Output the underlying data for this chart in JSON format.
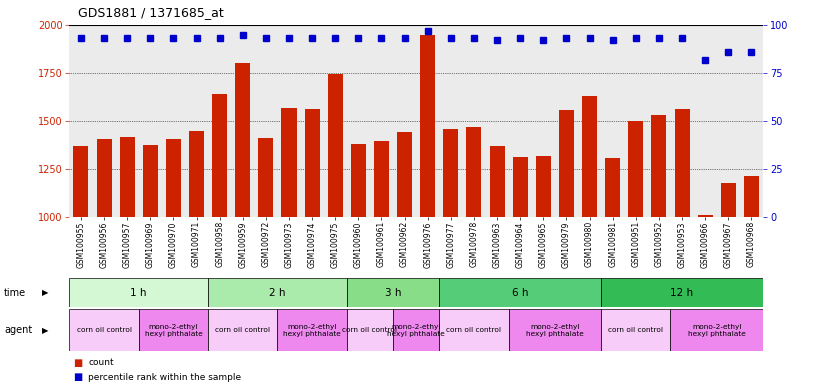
{
  "title": "GDS1881 / 1371685_at",
  "samples": [
    "GSM100955",
    "GSM100956",
    "GSM100957",
    "GSM100969",
    "GSM100970",
    "GSM100971",
    "GSM100958",
    "GSM100959",
    "GSM100972",
    "GSM100973",
    "GSM100974",
    "GSM100975",
    "GSM100960",
    "GSM100961",
    "GSM100962",
    "GSM100976",
    "GSM100977",
    "GSM100978",
    "GSM100963",
    "GSM100964",
    "GSM100965",
    "GSM100979",
    "GSM100980",
    "GSM100981",
    "GSM100951",
    "GSM100952",
    "GSM100953",
    "GSM100966",
    "GSM100967",
    "GSM100968"
  ],
  "counts": [
    1370,
    1405,
    1415,
    1375,
    1405,
    1450,
    1640,
    1800,
    1410,
    1570,
    1560,
    1745,
    1380,
    1395,
    1445,
    1950,
    1460,
    1470,
    1370,
    1310,
    1315,
    1555,
    1630,
    1305,
    1500,
    1530,
    1560,
    1010,
    1175,
    1215
  ],
  "percentiles": [
    93,
    93,
    93,
    93,
    93,
    93,
    93,
    95,
    93,
    93,
    93,
    93,
    93,
    93,
    93,
    97,
    93,
    93,
    92,
    93,
    92,
    93,
    93,
    92,
    93,
    93,
    93,
    82,
    86,
    86
  ],
  "time_groups": [
    {
      "label": "1 h",
      "start": 0,
      "end": 6,
      "color": "#d4f7d4"
    },
    {
      "label": "2 h",
      "start": 6,
      "end": 12,
      "color": "#aaeaaa"
    },
    {
      "label": "3 h",
      "start": 12,
      "end": 16,
      "color": "#88dd88"
    },
    {
      "label": "6 h",
      "start": 16,
      "end": 23,
      "color": "#55cc77"
    },
    {
      "label": "12 h",
      "start": 23,
      "end": 30,
      "color": "#33bb55"
    }
  ],
  "agent_groups": [
    {
      "label": "corn oil control",
      "start": 0,
      "end": 3,
      "color": "#f8ccf8"
    },
    {
      "label": "mono-2-ethyl\nhexyl phthalate",
      "start": 3,
      "end": 6,
      "color": "#ee88ee"
    },
    {
      "label": "corn oil control",
      "start": 6,
      "end": 9,
      "color": "#f8ccf8"
    },
    {
      "label": "mono-2-ethyl\nhexyl phthalate",
      "start": 9,
      "end": 12,
      "color": "#ee88ee"
    },
    {
      "label": "corn oil control",
      "start": 12,
      "end": 14,
      "color": "#f8ccf8"
    },
    {
      "label": "mono-2-ethyl\nhexyl phthalate",
      "start": 14,
      "end": 16,
      "color": "#ee88ee"
    },
    {
      "label": "corn oil control",
      "start": 16,
      "end": 19,
      "color": "#f8ccf8"
    },
    {
      "label": "mono-2-ethyl\nhexyl phthalate",
      "start": 19,
      "end": 23,
      "color": "#ee88ee"
    },
    {
      "label": "corn oil control",
      "start": 23,
      "end": 26,
      "color": "#f8ccf8"
    },
    {
      "label": "mono-2-ethyl\nhexyl phthalate",
      "start": 26,
      "end": 30,
      "color": "#ee88ee"
    }
  ],
  "bar_color": "#cc2200",
  "dot_color": "#0000cc",
  "ylim_left": [
    1000,
    2000
  ],
  "ylim_right": [
    0,
    100
  ],
  "yticks_left": [
    1000,
    1250,
    1500,
    1750,
    2000
  ],
  "yticks_right": [
    0,
    25,
    50,
    75,
    100
  ],
  "left_tick_color": "#cc2200",
  "right_tick_color": "#0000cc",
  "chart_bg": "#ebebeb",
  "fig_bg": "#ffffff"
}
